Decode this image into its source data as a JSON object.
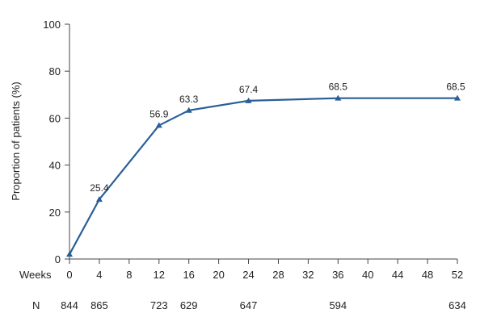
{
  "chart_data": {
    "type": "line",
    "ylabel": "Proportion of patients  (%)",
    "ylim": [
      0,
      100
    ],
    "yticks": [
      0,
      20,
      40,
      60,
      80,
      100
    ],
    "xlim": [
      0,
      52
    ],
    "xticks": [
      0,
      4,
      8,
      12,
      16,
      20,
      24,
      28,
      32,
      36,
      40,
      44,
      48,
      52
    ],
    "x_row_label": "Weeks",
    "n_row_label": "N",
    "grid": false,
    "line_color": "#2a5f96",
    "series": [
      {
        "x": [
          0,
          4,
          12,
          16,
          24,
          36,
          52
        ],
        "values": [
          2,
          25.4,
          56.9,
          63.3,
          67.4,
          68.5,
          68.5
        ],
        "labels": [
          "",
          "25.4",
          "56.9",
          "63.3",
          "67.4",
          "68.5",
          "68.5"
        ]
      }
    ],
    "n_values": [
      {
        "week": 0,
        "n": "844"
      },
      {
        "week": 4,
        "n": "865"
      },
      {
        "week": 12,
        "n": "723"
      },
      {
        "week": 16,
        "n": "629"
      },
      {
        "week": 24,
        "n": "647"
      },
      {
        "week": 36,
        "n": "594"
      },
      {
        "week": 52,
        "n": "634"
      }
    ]
  }
}
